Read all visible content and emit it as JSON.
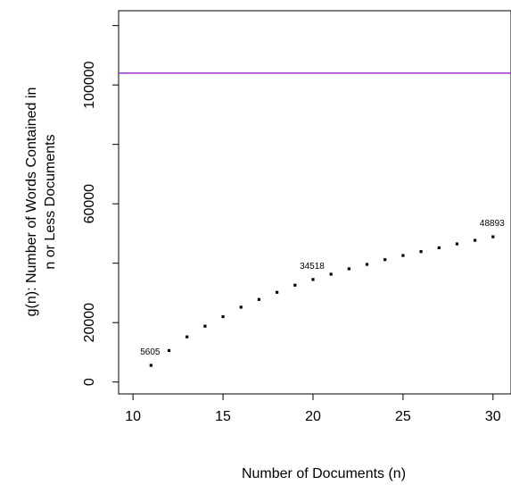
{
  "chart_data": {
    "type": "scatter",
    "title": "",
    "xlabel": "Number of Documents (n)",
    "ylabel_lines": [
      "g(n): Number of Words Contained in",
      "n or Less Documents"
    ],
    "xlim": [
      9.2,
      31
    ],
    "ylim": [
      -4000,
      125000
    ],
    "xticks": [
      10,
      15,
      20,
      25,
      30
    ],
    "yticks": [
      0,
      20000,
      60000,
      100000
    ],
    "x": [
      11,
      12,
      13,
      14,
      15,
      16,
      17,
      18,
      19,
      20,
      21,
      22,
      23,
      24,
      25,
      26,
      27,
      28,
      29,
      30
    ],
    "y": [
      5605,
      10600,
      15200,
      18800,
      22000,
      25200,
      27800,
      30200,
      32600,
      34518,
      36300,
      38100,
      39600,
      41200,
      42600,
      43900,
      45200,
      46500,
      47700,
      48893
    ],
    "point_labels": [
      {
        "x": 11,
        "y": 5605,
        "text": "5605"
      },
      {
        "x": 20,
        "y": 34518,
        "text": "34518"
      },
      {
        "x": 30,
        "y": 48893,
        "text": "48893"
      }
    ],
    "hline": {
      "y": 104000,
      "color": "#9b30d0"
    },
    "point_color": "#000000",
    "grid": false
  }
}
